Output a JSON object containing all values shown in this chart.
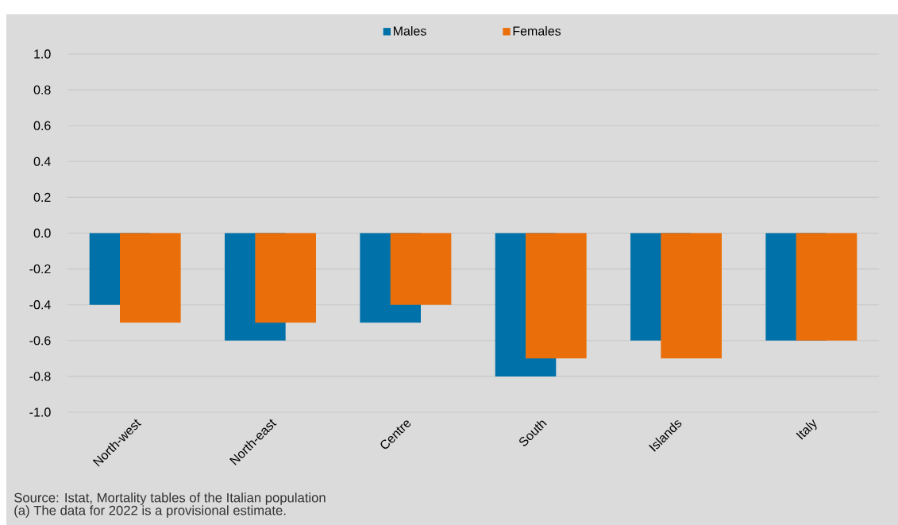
{
  "chart_data": {
    "type": "bar",
    "categories": [
      "North-west",
      "North-east",
      "Centre",
      "South",
      "Islands",
      "Italy"
    ],
    "series": [
      {
        "name": "Males",
        "color": "#0072a9",
        "values": [
          -0.4,
          -0.6,
          -0.5,
          -0.8,
          -0.6,
          -0.6
        ]
      },
      {
        "name": "Females",
        "color": "#ea6f0b",
        "values": [
          -0.5,
          -0.5,
          -0.4,
          -0.7,
          -0.7,
          -0.6
        ]
      }
    ],
    "ylim": [
      -1.0,
      1.0
    ],
    "yticks": [
      {
        "value": -1.0,
        "label": "-1.0"
      },
      {
        "value": -0.8,
        "label": "-0.8"
      },
      {
        "value": -0.6,
        "label": "-0.6"
      },
      {
        "value": -0.4,
        "label": "-0.4"
      },
      {
        "value": -0.2,
        "label": "-0.2"
      },
      {
        "value": 0,
        "label": "0.0"
      },
      {
        "value": 0.2,
        "label": "0.2"
      },
      {
        "value": 0.4,
        "label": "0.4"
      },
      {
        "value": 0.6,
        "label": "0.6"
      },
      {
        "value": 0.8,
        "label": "0.8"
      },
      {
        "value": 1.0,
        "label": "1.0"
      }
    ],
    "grid": "y",
    "legend": "top",
    "annotations": [
      "Source: Istat, Mortality tables of the Italian population",
      "(a) The data for 2022 is a provisional estimate."
    ]
  }
}
